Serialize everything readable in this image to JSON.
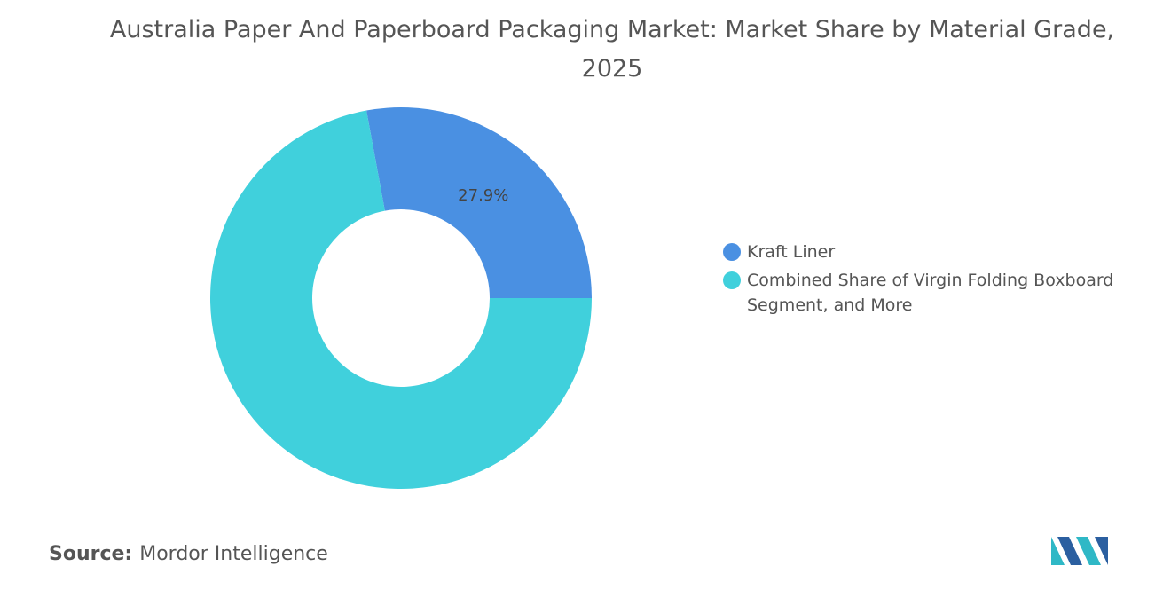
{
  "chart_data": {
    "type": "donut",
    "title": "Australia Paper And Paperboard Packaging Market: Market Share by Material Grade, 2025",
    "categories": [
      "Kraft Liner",
      "Combined Share of Virgin Folding Boxboard Segment, and More"
    ],
    "values": [
      27.9,
      72.1
    ],
    "value_labels": [
      "27.9%",
      null
    ],
    "colors": [
      "#4a90e2",
      "#40d0dc"
    ],
    "legend": "right"
  },
  "footer": {
    "source_label": "Source:",
    "source": "Mordor Intelligence"
  }
}
